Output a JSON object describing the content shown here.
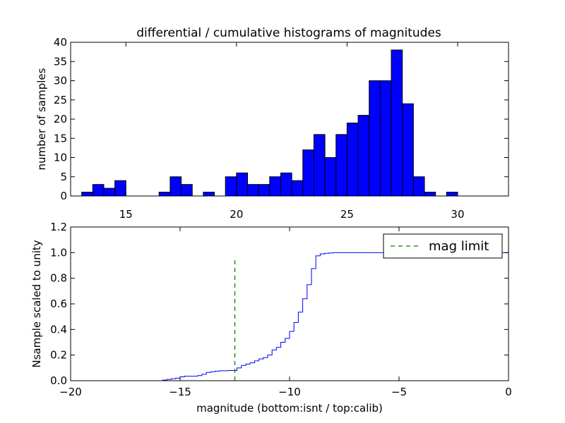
{
  "chart_data": [
    {
      "type": "bar",
      "title": "differential / cumulative histograms of magnitudes",
      "xlabel": "",
      "ylabel": "number of samples",
      "xlim": [
        12.5,
        32.3
      ],
      "ylim": [
        0,
        40
      ],
      "xticks": [
        15,
        20,
        25,
        30
      ],
      "yticks": [
        0,
        5,
        10,
        15,
        20,
        25,
        30,
        35,
        40
      ],
      "xtick_position": "top",
      "bar_color": "#0000ff",
      "bin_width": 0.5,
      "bins": [
        {
          "x": 13.0,
          "count": 1
        },
        {
          "x": 13.5,
          "count": 3
        },
        {
          "x": 14.0,
          "count": 2
        },
        {
          "x": 14.5,
          "count": 4
        },
        {
          "x": 15.0,
          "count": 0
        },
        {
          "x": 15.5,
          "count": 0
        },
        {
          "x": 16.0,
          "count": 0
        },
        {
          "x": 16.5,
          "count": 1
        },
        {
          "x": 17.0,
          "count": 5
        },
        {
          "x": 17.5,
          "count": 3
        },
        {
          "x": 18.0,
          "count": 0
        },
        {
          "x": 18.5,
          "count": 1
        },
        {
          "x": 19.0,
          "count": 0
        },
        {
          "x": 19.5,
          "count": 5
        },
        {
          "x": 20.0,
          "count": 6
        },
        {
          "x": 20.5,
          "count": 3
        },
        {
          "x": 21.0,
          "count": 3
        },
        {
          "x": 21.5,
          "count": 5
        },
        {
          "x": 22.0,
          "count": 6
        },
        {
          "x": 22.5,
          "count": 4
        },
        {
          "x": 23.0,
          "count": 12
        },
        {
          "x": 23.5,
          "count": 16
        },
        {
          "x": 24.0,
          "count": 10
        },
        {
          "x": 24.5,
          "count": 16
        },
        {
          "x": 25.0,
          "count": 19
        },
        {
          "x": 25.5,
          "count": 21
        },
        {
          "x": 26.0,
          "count": 30
        },
        {
          "x": 26.5,
          "count": 30
        },
        {
          "x": 27.0,
          "count": 38
        },
        {
          "x": 27.5,
          "count": 24
        },
        {
          "x": 28.0,
          "count": 5
        },
        {
          "x": 28.5,
          "count": 1
        },
        {
          "x": 29.0,
          "count": 0
        },
        {
          "x": 29.5,
          "count": 1
        }
      ]
    },
    {
      "type": "line",
      "title": "",
      "xlabel": "magnitude (bottom:isnt / top:calib)",
      "ylabel": "Nsample scaled to unity",
      "xlim": [
        -20,
        0
      ],
      "ylim": [
        0.0,
        1.2
      ],
      "xticks": [
        -20,
        -15,
        -10,
        -5,
        0
      ],
      "xtick_labels": [
        "−20",
        "−15",
        "−10",
        "−5",
        "0"
      ],
      "yticks": [
        0.0,
        0.2,
        0.4,
        0.6,
        0.8,
        1.0,
        1.2
      ],
      "ytick_labels": [
        "0.0",
        "0.2",
        "0.4",
        "0.6",
        "0.8",
        "1.0",
        "1.2"
      ],
      "legend_position": "top-right",
      "series": [
        {
          "name": "",
          "color": "#0000ff",
          "style": "step",
          "x": [
            -20.0,
            -16.0,
            -15.8,
            -15.6,
            -15.4,
            -15.2,
            -15.0,
            -14.8,
            -14.6,
            -14.4,
            -14.2,
            -14.0,
            -13.8,
            -13.6,
            -13.4,
            -13.2,
            -13.0,
            -12.8,
            -12.6,
            -12.4,
            -12.2,
            -12.0,
            -11.8,
            -11.6,
            -11.4,
            -11.2,
            -11.0,
            -10.8,
            -10.6,
            -10.4,
            -10.2,
            -10.0,
            -9.8,
            -9.6,
            -9.4,
            -9.2,
            -9.0,
            -8.8,
            -8.6,
            -8.4,
            -8.2,
            -8.0,
            -7.8,
            -7.0,
            -6.0,
            -5.0,
            -4.0,
            -3.0,
            -2.0,
            -1.0,
            0.0
          ],
          "y": [
            0.0,
            0.0,
            0.005,
            0.01,
            0.015,
            0.02,
            0.03,
            0.035,
            0.035,
            0.035,
            0.04,
            0.05,
            0.065,
            0.07,
            0.075,
            0.078,
            0.078,
            0.08,
            0.08,
            0.1,
            0.12,
            0.13,
            0.14,
            0.155,
            0.17,
            0.18,
            0.2,
            0.24,
            0.26,
            0.3,
            0.33,
            0.385,
            0.455,
            0.535,
            0.64,
            0.75,
            0.875,
            0.975,
            0.99,
            0.995,
            0.998,
            1.0,
            1.0,
            1.0,
            1.0,
            1.0,
            1.0,
            1.0,
            1.0,
            1.0,
            1.0
          ]
        },
        {
          "name": "mag limit",
          "color": "#008000",
          "style": "dashed",
          "x": [
            -12.5,
            -12.5
          ],
          "y": [
            0.0,
            0.97
          ]
        }
      ]
    }
  ]
}
